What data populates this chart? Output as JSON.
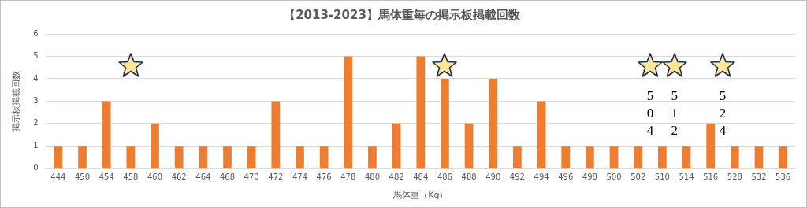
{
  "chart_data": {
    "type": "bar",
    "title": "【2013-2023】馬体重毎の掲示板掲載回数",
    "xlabel": "馬体重（Kg）",
    "ylabel": "掲示板掲載回数",
    "categories": [
      "444",
      "450",
      "454",
      "458",
      "460",
      "462",
      "464",
      "468",
      "470",
      "472",
      "474",
      "476",
      "478",
      "480",
      "482",
      "484",
      "486",
      "488",
      "490",
      "492",
      "494",
      "496",
      "498",
      "500",
      "502",
      "510",
      "514",
      "516",
      "528",
      "532",
      "536"
    ],
    "values": [
      1,
      1,
      3,
      1,
      2,
      1,
      1,
      1,
      1,
      3,
      1,
      1,
      5,
      1,
      2,
      5,
      4,
      2,
      4,
      1,
      3,
      1,
      1,
      1,
      1,
      1,
      1,
      2,
      1,
      1,
      1
    ],
    "color": "#ed7d31",
    "ylim": [
      0,
      6
    ],
    "yticks": [
      0,
      1,
      2,
      3,
      4,
      5,
      6
    ],
    "grid": "y",
    "annotations": [
      "504",
      "512",
      "524"
    ]
  }
}
